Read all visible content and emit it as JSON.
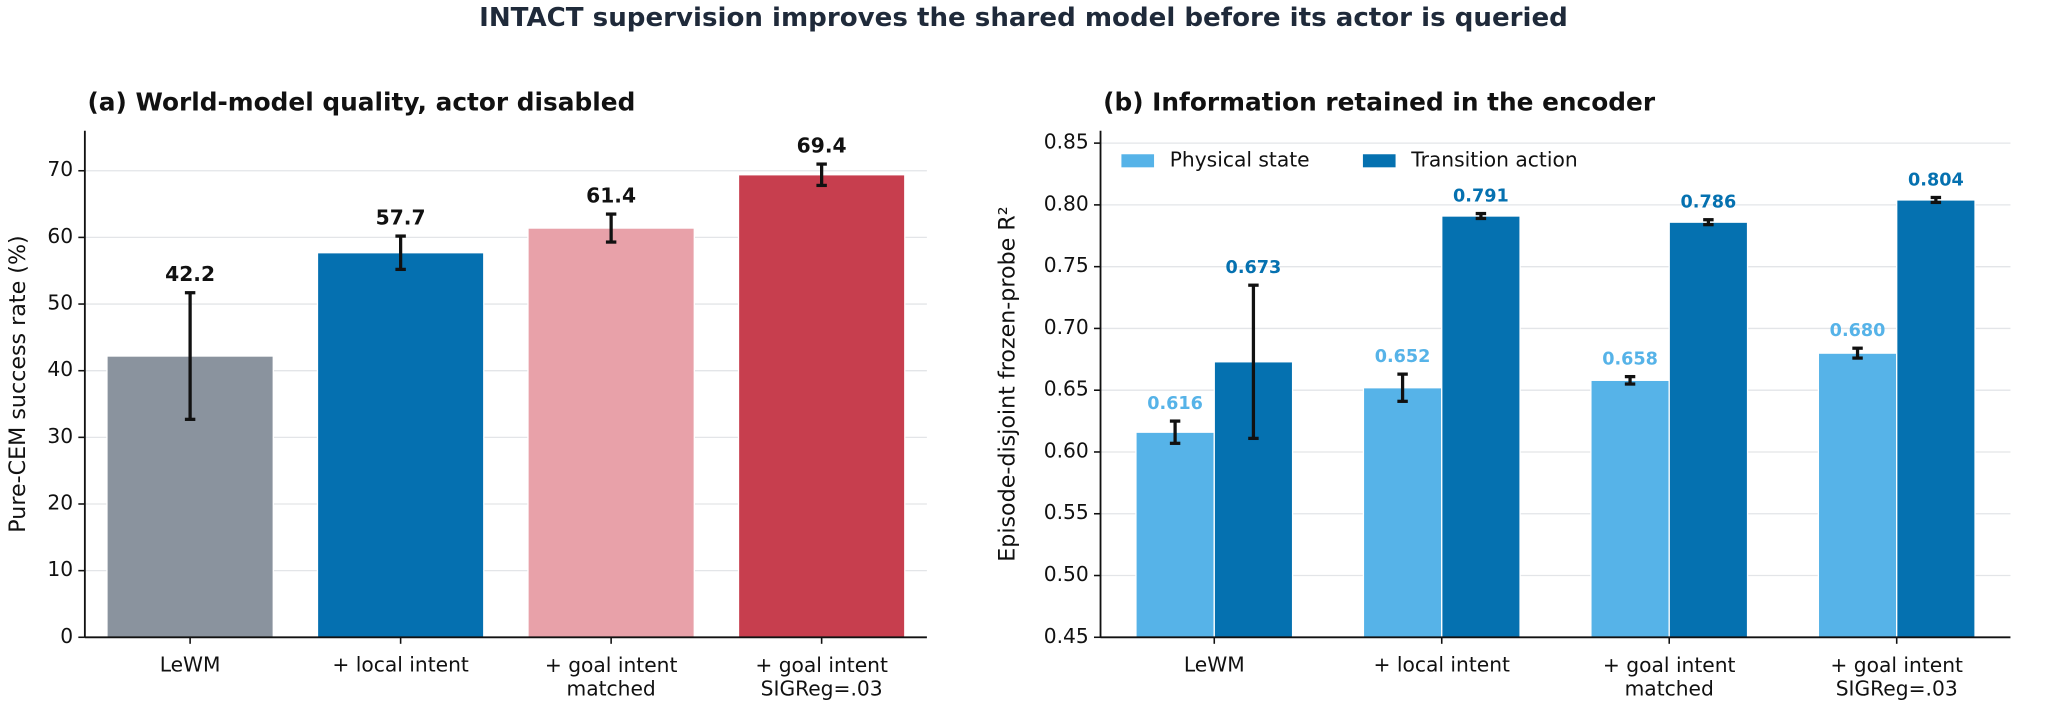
{
  "title": "INTACT supervision improves the shared model before its actor is queried",
  "chart_data": [
    {
      "type": "bar",
      "title": "(a) World-model quality, actor disabled",
      "ylabel": "Pure-CEM success rate (%)",
      "categories": [
        "LeWM",
        "+ local intent",
        "+ goal intent\nmatched",
        "+ goal intent\nSIGReg=.03"
      ],
      "values": [
        42.2,
        57.7,
        61.4,
        69.4
      ],
      "errors": [
        9.5,
        2.5,
        2.1,
        1.6
      ],
      "colors": [
        "#8a939e",
        "#0570b0",
        "#e8a1a9",
        "#c73e4e"
      ],
      "ylim": [
        0,
        76
      ],
      "yticks": [
        0,
        10,
        20,
        30,
        40,
        50,
        60,
        70
      ],
      "grid": true
    },
    {
      "type": "grouped_bar",
      "title": "(b) Information retained in the encoder",
      "ylabel": "Episode-disjoint frozen-probe R²",
      "categories": [
        "LeWM",
        "+ local intent",
        "+ goal intent\nmatched",
        "+ goal intent\nSIGReg=.03"
      ],
      "series": [
        {
          "name": "Physical state",
          "color": "#56b3e8",
          "values": [
            0.616,
            0.652,
            0.658,
            0.68
          ],
          "value_labels": [
            "0.616",
            "0.652",
            "0.658",
            "0.680"
          ],
          "errors": [
            0.009,
            0.011,
            0.003,
            0.004
          ]
        },
        {
          "name": "Transition action",
          "color": "#0571b0",
          "values": [
            0.673,
            0.791,
            0.786,
            0.804
          ],
          "value_labels": [
            "0.673",
            "0.791",
            "0.786",
            "0.804"
          ],
          "errors": [
            0.062,
            0.002,
            0.002,
            0.002
          ]
        }
      ],
      "ylim": [
        0.45,
        0.86
      ],
      "yticks": [
        {
          "value": 0.45,
          "label": "0.45"
        },
        {
          "value": 0.5,
          "label": "0.50"
        },
        {
          "value": 0.55,
          "label": "0.55"
        },
        {
          "value": 0.6,
          "label": "0.60"
        },
        {
          "value": 0.65,
          "label": "0.65"
        },
        {
          "value": 0.7,
          "label": "0.70"
        },
        {
          "value": 0.75,
          "label": "0.75"
        },
        {
          "value": 0.8,
          "label": "0.80"
        },
        {
          "value": 0.85,
          "label": "0.85"
        }
      ],
      "grid": true,
      "legend": "upper left"
    }
  ]
}
